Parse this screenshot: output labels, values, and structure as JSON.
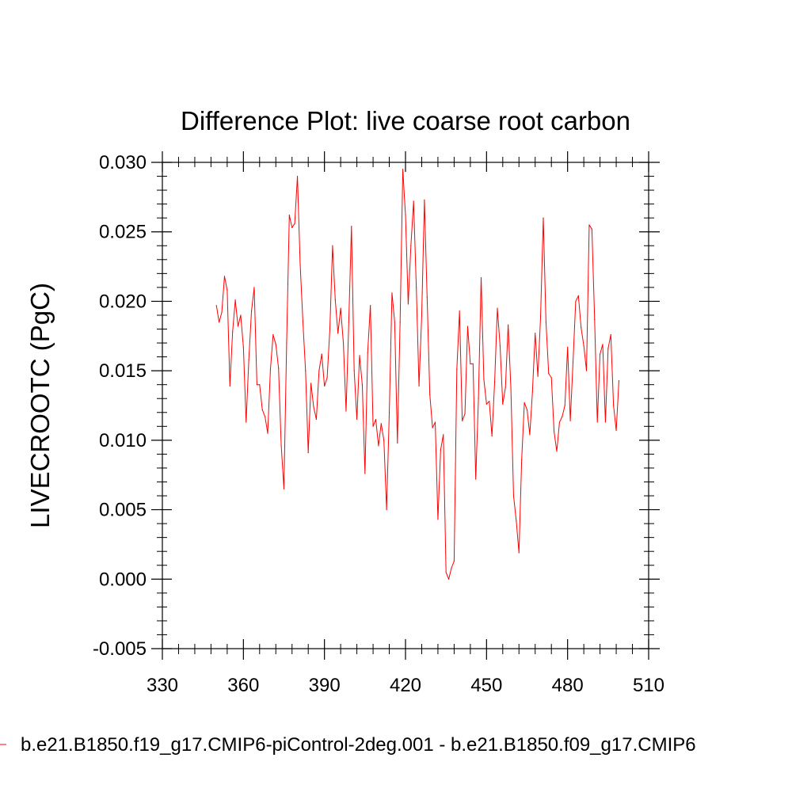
{
  "chart_data": {
    "type": "line",
    "title": "Difference Plot: live coarse root carbon",
    "xlabel": "",
    "ylabel": "LIVECROOTC  (PgC)",
    "xlim": [
      330,
      510
    ],
    "ylim": [
      -0.005,
      0.03
    ],
    "xticks": [
      330,
      360,
      390,
      420,
      450,
      480,
      510
    ],
    "xtick_labels": [
      "330",
      "360",
      "390",
      "420",
      "450",
      "480",
      "510"
    ],
    "yticks": [
      -0.005,
      0.0,
      0.005,
      0.01,
      0.015,
      0.02,
      0.025,
      0.03
    ],
    "ytick_labels": [
      "-0.005",
      "0.000",
      "0.005",
      "0.010",
      "0.015",
      "0.020",
      "0.025",
      "0.030"
    ],
    "legend_position": "bottom",
    "series": [
      {
        "name": "b.e21.B1850.f19_g17.CMIP6-piControl-2deg.001 - b.e21.B1850.f09_g17.CMIP6",
        "color": "#ff0000",
        "x": [
          350,
          351,
          352,
          353,
          354,
          355,
          356,
          357,
          358,
          359,
          360,
          361,
          362,
          363,
          364,
          365,
          366,
          367,
          368,
          369,
          370,
          371,
          372,
          373,
          374,
          375,
          376,
          377,
          378,
          379,
          380,
          381,
          382,
          383,
          384,
          385,
          386,
          387,
          388,
          389,
          390,
          391,
          392,
          393,
          394,
          395,
          396,
          397,
          398,
          399,
          400,
          401,
          402,
          403,
          404,
          405,
          406,
          407,
          408,
          409,
          410,
          411,
          412,
          413,
          414,
          415,
          416,
          417,
          418,
          419,
          420,
          421,
          422,
          423,
          424,
          425,
          426,
          427,
          428,
          429,
          430,
          431,
          432,
          433,
          434,
          435,
          436,
          437,
          438,
          439,
          440,
          441,
          442,
          443,
          444,
          445,
          446,
          447,
          448,
          449,
          450,
          451,
          452,
          453,
          454,
          455,
          456,
          457,
          458,
          459,
          460,
          461,
          462,
          463,
          464,
          465,
          466,
          467,
          468,
          469,
          470,
          471,
          472,
          473,
          474,
          475,
          476,
          477,
          478,
          479,
          480,
          481,
          482,
          483,
          484,
          485,
          486,
          487,
          488,
          489,
          490,
          491,
          492,
          493,
          494,
          495,
          496,
          497,
          498,
          499
        ],
        "values": [
          0.0197,
          0.0185,
          0.0192,
          0.0218,
          0.0208,
          0.0139,
          0.0178,
          0.0201,
          0.0182,
          0.019,
          0.0167,
          0.0113,
          0.0158,
          0.0193,
          0.021,
          0.014,
          0.014,
          0.0122,
          0.0117,
          0.0105,
          0.0151,
          0.0176,
          0.0169,
          0.0152,
          0.0096,
          0.0065,
          0.017,
          0.0262,
          0.0253,
          0.0256,
          0.029,
          0.0227,
          0.0186,
          0.015,
          0.0091,
          0.0141,
          0.0124,
          0.0115,
          0.015,
          0.0162,
          0.0139,
          0.0145,
          0.018,
          0.024,
          0.0201,
          0.0177,
          0.0195,
          0.017,
          0.0121,
          0.0185,
          0.0254,
          0.015,
          0.0115,
          0.0161,
          0.014,
          0.0076,
          0.0163,
          0.0197,
          0.011,
          0.0115,
          0.0096,
          0.0112,
          0.01,
          0.005,
          0.012,
          0.0206,
          0.0185,
          0.0098,
          0.0185,
          0.0295,
          0.0262,
          0.0198,
          0.024,
          0.0272,
          0.021,
          0.0139,
          0.019,
          0.0273,
          0.0203,
          0.0133,
          0.0109,
          0.0113,
          0.0043,
          0.0093,
          0.0104,
          0.0005,
          0.0,
          0.0008,
          0.0013,
          0.0151,
          0.0193,
          0.0114,
          0.0119,
          0.0182,
          0.0155,
          0.0155,
          0.0072,
          0.013,
          0.0217,
          0.0144,
          0.0126,
          0.0128,
          0.0103,
          0.0142,
          0.0195,
          0.0168,
          0.0126,
          0.0138,
          0.0183,
          0.0138,
          0.006,
          0.0042,
          0.0019,
          0.0086,
          0.0127,
          0.0122,
          0.0104,
          0.0135,
          0.0177,
          0.0146,
          0.0189,
          0.026,
          0.0185,
          0.0148,
          0.0145,
          0.0106,
          0.0092,
          0.0113,
          0.0117,
          0.0125,
          0.0167,
          0.0114,
          0.0156,
          0.02,
          0.0204,
          0.0181,
          0.0168,
          0.015,
          0.0255,
          0.0252,
          0.0187,
          0.0113,
          0.0162,
          0.0169,
          0.0113,
          0.0166,
          0.0176,
          0.0125,
          0.0107,
          0.0143
        ]
      }
    ]
  }
}
